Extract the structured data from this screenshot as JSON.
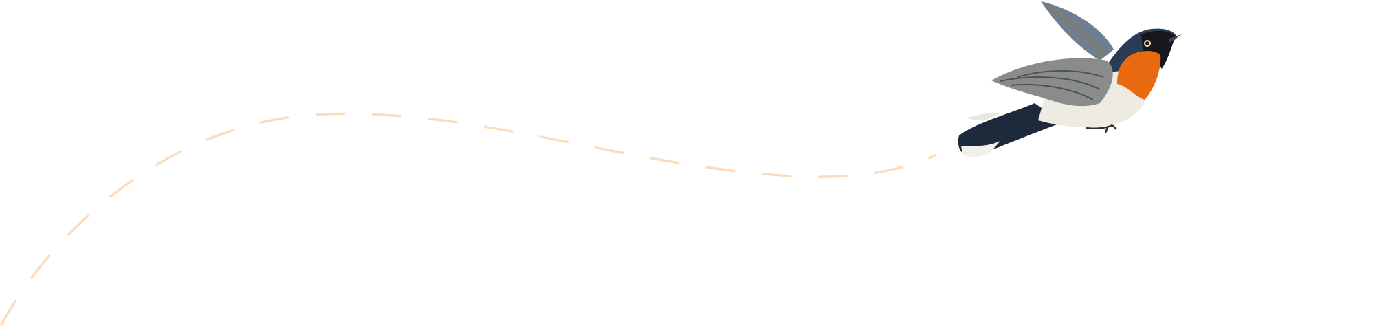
{
  "colors": {
    "background": "#ffffff",
    "flight_path": "#fcdcbd",
    "bird_throat": "#e8690f",
    "bird_head": "#1f2e45",
    "bird_wing": "#8a8c8a",
    "bird_belly": "#eeebe3"
  },
  "illustration": {
    "subject": "bird-icon",
    "path_style": "dashed"
  }
}
